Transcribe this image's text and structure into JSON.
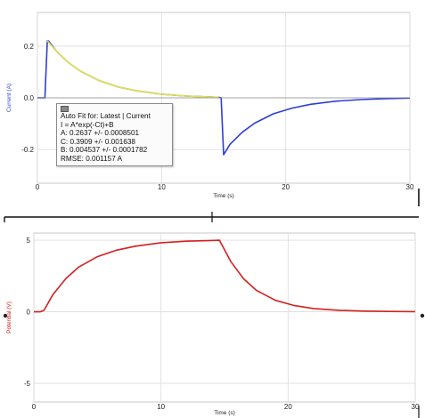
{
  "chart_data": [
    {
      "type": "line",
      "title": "",
      "xlabel": "Time (s)",
      "ylabel": "Current (A)",
      "xlim": [
        0,
        30
      ],
      "ylim": [
        -0.33,
        0.33
      ],
      "xticks": [
        0,
        10,
        20,
        30
      ],
      "xtick_labels": [
        "0",
        "10",
        "20",
        "30"
      ],
      "yticks": [
        -0.2,
        0.0,
        0.2
      ],
      "ytick_labels": [
        "-0.2",
        "0.0",
        "0.2"
      ],
      "grid": true,
      "series": [
        {
          "color": "#2c3fd6",
          "x": [
            0.0,
            0.6,
            0.8,
            0.9,
            1.5,
            2.5,
            3.5,
            5.0,
            6.5,
            8.0,
            10.0,
            12.0,
            14.0,
            14.6,
            14.8,
            15.0,
            15.5,
            16.5,
            17.5,
            19.0,
            20.5,
            22.0,
            24.0,
            26.0,
            28.0,
            30.0
          ],
          "y": [
            0.0,
            0.0,
            0.22,
            0.22,
            0.182,
            0.136,
            0.102,
            0.066,
            0.042,
            0.027,
            0.014,
            0.007,
            0.003,
            0.002,
            0.0,
            -0.22,
            -0.18,
            -0.133,
            -0.098,
            -0.062,
            -0.04,
            -0.025,
            -0.013,
            -0.007,
            -0.003,
            -0.001
          ]
        },
        {
          "color": "#e3e34a",
          "x": [
            0.8,
            1.5,
            2.5,
            3.5,
            5.0,
            6.5,
            8.0,
            10.0,
            12.0,
            14.6
          ],
          "y": [
            0.22,
            0.182,
            0.136,
            0.102,
            0.066,
            0.042,
            0.027,
            0.014,
            0.007,
            0.002
          ]
        },
        {
          "color": "#8a8a8a",
          "x": [
            0,
            30
          ],
          "y": [
            0,
            0
          ]
        }
      ],
      "annotations": [
        "Auto Fit for: Latest | Current",
        "I = A*exp(-Ct)+B",
        "A: 0.2637 +/- 0.0008501",
        "C: 0.3909 +/- 0.001638",
        "B: 0.004537 +/- 0.0001782",
        "RMSE: 0.001157 A"
      ]
    },
    {
      "type": "line",
      "title": "",
      "xlabel": "Time (s)",
      "ylabel": "Potential (V)",
      "xlim": [
        0,
        30
      ],
      "ylim": [
        -6.3,
        5.5
      ],
      "xticks": [
        0,
        10,
        20,
        30
      ],
      "xtick_labels": [
        "0",
        "10",
        "20",
        "30"
      ],
      "yticks": [
        -5,
        0,
        5
      ],
      "ytick_labels": [
        "-5",
        "0",
        "5"
      ],
      "grid": true,
      "series": [
        {
          "color": "#d42020",
          "x": [
            0.0,
            0.5,
            0.8,
            1.5,
            2.5,
            3.5,
            5.0,
            6.5,
            8.0,
            10.0,
            12.0,
            14.0,
            14.6,
            15.5,
            16.5,
            17.5,
            19.0,
            20.5,
            22.0,
            24.0,
            26.0,
            28.0,
            30.0
          ],
          "y": [
            0.0,
            0.0,
            0.1,
            1.2,
            2.3,
            3.1,
            3.85,
            4.3,
            4.58,
            4.82,
            4.93,
            4.98,
            5.0,
            3.5,
            2.3,
            1.5,
            0.8,
            0.43,
            0.23,
            0.1,
            0.05,
            0.02,
            0.01
          ]
        }
      ]
    }
  ]
}
